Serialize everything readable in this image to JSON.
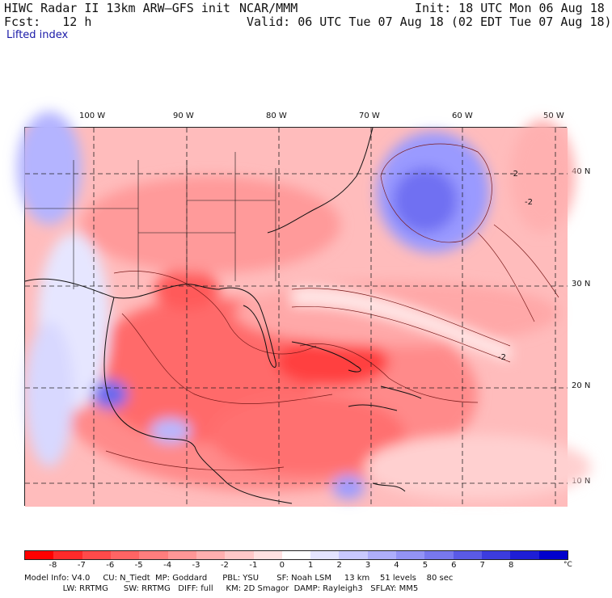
{
  "header": {
    "title": "HIWC Radar II 13km ARW–GFS init",
    "org": "NCAR/MMM",
    "init": "Init: 18 UTC Mon 06 Aug 18",
    "fcst": "Fcst:   12 h",
    "valid": "Valid: 06 UTC Tue 07 Aug 18 (02 EDT Tue 07 Aug 18)",
    "variable": "Lifted index"
  },
  "map": {
    "lon_labels": [
      "100 W",
      "90 W",
      "80 W",
      "70 W",
      "60 W",
      "50 W"
    ],
    "lat_labels": [
      "40 N",
      "30 N",
      "20 N",
      "10 N"
    ],
    "contour_label": "-2"
  },
  "colorbar": {
    "ticks": [
      "-8",
      "-7",
      "-6",
      "-5",
      "-4",
      "-3",
      "-2",
      "-1",
      "0",
      "1",
      "2",
      "3",
      "4",
      "5",
      "6",
      "7",
      "8"
    ],
    "unit": "°C",
    "colors": [
      "#ff0000",
      "#ff2a2a",
      "#ff4a4a",
      "#ff6464",
      "#ff7d7d",
      "#ff9696",
      "#ffafaf",
      "#ffc8c8",
      "#ffe1e1",
      "#ffffff",
      "#e4e4ff",
      "#c9c9ff",
      "#aeaefb",
      "#9393f5",
      "#7878ee",
      "#5a5ae6",
      "#3c3cde",
      "#1e1ed6",
      "#0000cd"
    ]
  },
  "model_info": {
    "line1": "Model Info: V4.0     CU: N_Tiedt  MP: Goddard      PBL: YSU       SF: Noah LSM     13 km    51 levels    80 sec",
    "line2": "               LW: RRTMG      SW: RRTMG   DIFF: full     KM: 2D Smagor  DAMP: Rayleigh3   SFLAY: MM5"
  }
}
